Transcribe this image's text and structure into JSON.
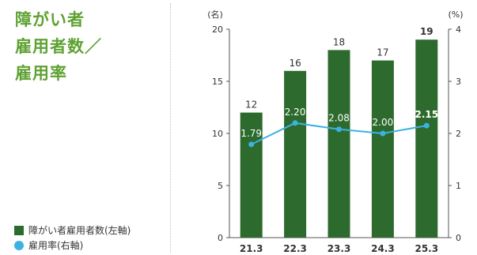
{
  "title": {
    "lines": [
      "障がい者",
      "雇用者数／",
      "雇用率"
    ]
  },
  "legend": {
    "items": [
      {
        "label": "障がい者雇用者数(左軸)",
        "shape": "square",
        "color": "#2d6a2d"
      },
      {
        "label": "雇用率(右軸)",
        "shape": "circle",
        "color": "#3eb1e3"
      }
    ]
  },
  "chart_data": {
    "type": "bar",
    "categories": [
      "21.3",
      "22.3",
      "23.3",
      "24.3",
      "25.3"
    ],
    "highlight_category": "25.3",
    "y_left": {
      "unit": "(名)",
      "lim": [
        0,
        20
      ],
      "ticks": [
        0,
        5,
        10,
        15,
        20
      ]
    },
    "y_right": {
      "unit": "(%)",
      "lim": [
        0,
        4
      ],
      "ticks": [
        0,
        1,
        2,
        3,
        4
      ]
    },
    "series": [
      {
        "name": "障がい者雇用者数(左軸)",
        "type": "bar",
        "axis": "left",
        "color": "#2d6a2d",
        "values": [
          12,
          16,
          18,
          17,
          19
        ]
      },
      {
        "name": "雇用率(右軸)",
        "type": "line",
        "axis": "right",
        "color": "#3eb1e3",
        "values": [
          1.79,
          2.2,
          2.08,
          2.0,
          2.15
        ],
        "labels": [
          "1.79",
          "2.20",
          "2.08",
          "2.00",
          "2.15"
        ]
      }
    ],
    "grid": false
  }
}
